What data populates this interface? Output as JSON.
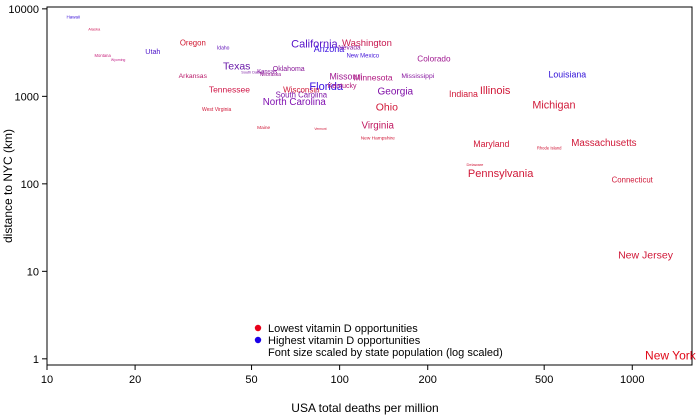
{
  "chart_data": {
    "type": "scatter",
    "x_scale": "log",
    "y_scale": "log",
    "xlabel": "USA total deaths per million",
    "ylabel": "distance to NYC (km)",
    "xlim": [
      10,
      1600
    ],
    "ylim": [
      0.85,
      10500
    ],
    "x_ticks": [
      10,
      20,
      50,
      100,
      200,
      500,
      1000
    ],
    "x_tick_labels": [
      "10",
      "20",
      "50",
      "100",
      "200",
      "500",
      "1000"
    ],
    "y_ticks": [
      1,
      10,
      100,
      1000,
      10000
    ],
    "y_tick_labels": [
      "1",
      "10",
      "100",
      "1000",
      "10000"
    ],
    "grid": false,
    "legend_position": "bottom-center",
    "legend": [
      {
        "label": "Lowest vitamin D opportunities",
        "color": "#e8001a"
      },
      {
        "label": "Highest vitamin D opportunities",
        "color": "#1a00e8"
      },
      {
        "label": "Font size scaled by state population (log scaled)",
        "color": ""
      }
    ],
    "points": [
      {
        "name": "Hawaii",
        "x": 12.3,
        "y": 8000,
        "size": 4.5,
        "color": "#3a10d8"
      },
      {
        "name": "Alaska",
        "x": 14.5,
        "y": 5800,
        "size": 4.0,
        "color": "#d0205e"
      },
      {
        "name": "Montana",
        "x": 15.5,
        "y": 2900,
        "size": 4.2,
        "color": "#c8207a"
      },
      {
        "name": "Wyoming",
        "x": 17.5,
        "y": 2600,
        "size": 3.5,
        "color": "#c02088"
      },
      {
        "name": "Utah",
        "x": 23,
        "y": 3200,
        "size": 7.2,
        "color": "#4a10c8"
      },
      {
        "name": "Oregon",
        "x": 31.5,
        "y": 4000,
        "size": 7.8,
        "color": "#d01830"
      },
      {
        "name": "Idaho",
        "x": 40,
        "y": 3550,
        "size": 5.0,
        "color": "#6010b8"
      },
      {
        "name": "Arkansas",
        "x": 31.5,
        "y": 1700,
        "size": 6.8,
        "color": "#b81868"
      },
      {
        "name": "Texas",
        "x": 44.5,
        "y": 2180,
        "size": 10.5,
        "color": "#6818a8"
      },
      {
        "name": "South Dakota",
        "x": 50.5,
        "y": 1880,
        "size": 3.8,
        "color": "#7818a0"
      },
      {
        "name": "Kansas",
        "x": 56.5,
        "y": 1900,
        "size": 6.0,
        "color": "#8818a0"
      },
      {
        "name": "Oklahoma",
        "x": 67,
        "y": 2050,
        "size": 7.0,
        "color": "#881898"
      },
      {
        "name": "Nebraska",
        "x": 58,
        "y": 1760,
        "size": 5.0,
        "color": "#901890"
      },
      {
        "name": "Tennessee",
        "x": 42,
        "y": 1180,
        "size": 8.5,
        "color": "#d01848"
      },
      {
        "name": "West Virginia",
        "x": 38,
        "y": 700,
        "size": 5.0,
        "color": "#d01838"
      },
      {
        "name": "North Carolina",
        "x": 70,
        "y": 850,
        "size": 9.8,
        "color": "#8010b0"
      },
      {
        "name": "South Carolina",
        "x": 74,
        "y": 1020,
        "size": 7.8,
        "color": "#8018a8"
      },
      {
        "name": "Wisconsin",
        "x": 74,
        "y": 1170,
        "size": 8.0,
        "color": "#d01838"
      },
      {
        "name": "Maine",
        "x": 55,
        "y": 440,
        "size": 4.8,
        "color": "#d01838"
      },
      {
        "name": "Vermont",
        "x": 86,
        "y": 420,
        "size": 3.3,
        "color": "#d01838"
      },
      {
        "name": "California",
        "x": 82,
        "y": 3900,
        "size": 11.0,
        "color": "#5510c8"
      },
      {
        "name": "Arizona",
        "x": 92,
        "y": 3400,
        "size": 9.0,
        "color": "#3a10e0"
      },
      {
        "name": "Nevada",
        "x": 108,
        "y": 3600,
        "size": 6.5,
        "color": "#9020a0"
      },
      {
        "name": "Washington",
        "x": 124,
        "y": 4000,
        "size": 9.5,
        "color": "#c81850"
      },
      {
        "name": "New Mexico",
        "x": 120,
        "y": 2900,
        "size": 6.0,
        "color": "#4010d8"
      },
      {
        "name": "Missouri",
        "x": 105,
        "y": 1650,
        "size": 8.8,
        "color": "#a01890"
      },
      {
        "name": "Florida",
        "x": 90,
        "y": 1270,
        "size": 11.0,
        "color": "#3a10e0"
      },
      {
        "name": "Kentucky",
        "x": 102,
        "y": 1300,
        "size": 7.0,
        "color": "#b01878"
      },
      {
        "name": "Minnesota",
        "x": 130,
        "y": 1600,
        "size": 8.5,
        "color": "#b01880"
      },
      {
        "name": "Georgia",
        "x": 155,
        "y": 1120,
        "size": 10.0,
        "color": "#8010a8"
      },
      {
        "name": "Colorado",
        "x": 210,
        "y": 2650,
        "size": 8.2,
        "color": "#a01890"
      },
      {
        "name": "Mississippi",
        "x": 185,
        "y": 1700,
        "size": 6.8,
        "color": "#8818a0"
      },
      {
        "name": "Ohio",
        "x": 145,
        "y": 740,
        "size": 10.5,
        "color": "#d01838"
      },
      {
        "name": "Virginia",
        "x": 135,
        "y": 460,
        "size": 9.8,
        "color": "#c01860"
      },
      {
        "name": "New Hampshire",
        "x": 135,
        "y": 330,
        "size": 4.8,
        "color": "#d01838"
      },
      {
        "name": "Indiana",
        "x": 265,
        "y": 1050,
        "size": 8.8,
        "color": "#d01838"
      },
      {
        "name": "Illinois",
        "x": 340,
        "y": 1150,
        "size": 11.0,
        "color": "#d01838"
      },
      {
        "name": "Louisiana",
        "x": 600,
        "y": 1750,
        "size": 8.8,
        "color": "#3010d8"
      },
      {
        "name": "Michigan",
        "x": 540,
        "y": 780,
        "size": 10.8,
        "color": "#d01838"
      },
      {
        "name": "Maryland",
        "x": 330,
        "y": 280,
        "size": 8.8,
        "color": "#d01838"
      },
      {
        "name": "Delaware",
        "x": 290,
        "y": 165,
        "size": 4.0,
        "color": "#d01838"
      },
      {
        "name": "Pennsylvania",
        "x": 355,
        "y": 130,
        "size": 11.0,
        "color": "#d01838"
      },
      {
        "name": "Rhode Island",
        "x": 520,
        "y": 255,
        "size": 4.2,
        "color": "#d01838"
      },
      {
        "name": "Massachusetts",
        "x": 800,
        "y": 290,
        "size": 9.8,
        "color": "#d01838"
      },
      {
        "name": "Connecticut",
        "x": 1000,
        "y": 110,
        "size": 7.8,
        "color": "#d01838"
      },
      {
        "name": "New Jersey",
        "x": 1110,
        "y": 15,
        "size": 10.5,
        "color": "#d01838"
      },
      {
        "name": "New York",
        "x": 1350,
        "y": 1.07,
        "size": 12.0,
        "color": "#e00818"
      }
    ]
  }
}
